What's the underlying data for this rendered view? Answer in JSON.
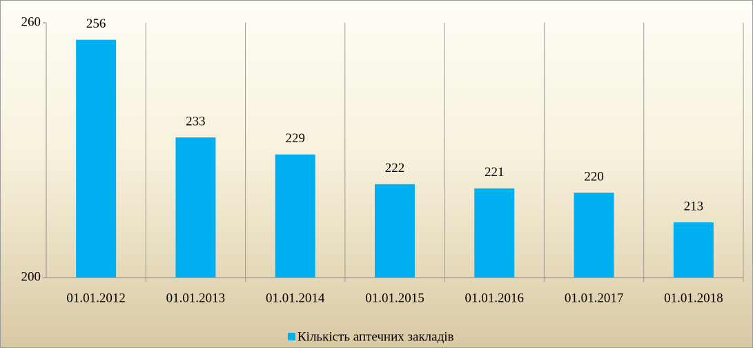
{
  "chart_data": {
    "type": "bar",
    "categories": [
      "01.01.2012",
      "01.01.2013",
      "01.01.2014",
      "01.01.2015",
      "01.01.2016",
      "01.01.2017",
      "01.01.2018"
    ],
    "series": [
      {
        "name": "Кількість аптечних закладів",
        "color": "#00b0f0",
        "values": [
          256,
          233,
          229,
          222,
          221,
          220,
          213
        ]
      }
    ],
    "ylim": [
      200,
      260
    ],
    "yticks": [
      200,
      260
    ],
    "grid": false,
    "legend": "bottom"
  }
}
